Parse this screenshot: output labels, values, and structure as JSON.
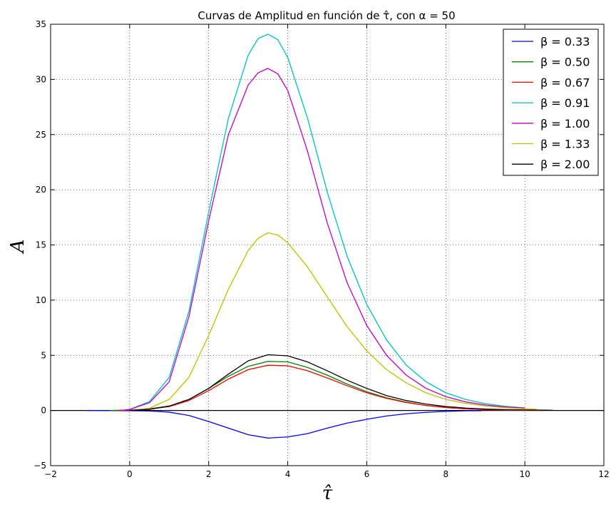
{
  "chart_data": {
    "type": "line",
    "title": "Curvas de Amplitud en función de τ̂, con α = 50",
    "xlabel": "τ̂",
    "ylabel": "A",
    "xlim": [
      -2,
      12
    ],
    "ylim": [
      -5,
      35
    ],
    "xticks": [
      -2,
      0,
      2,
      4,
      6,
      8,
      10,
      12
    ],
    "yticks": [
      -5,
      0,
      5,
      10,
      15,
      20,
      25,
      30,
      35
    ],
    "xtick_labels": [
      "−2",
      "0",
      "2",
      "4",
      "6",
      "8",
      "10",
      "12"
    ],
    "ytick_labels": [
      "−5",
      "0",
      "5",
      "10",
      "15",
      "20",
      "25",
      "30",
      "35"
    ],
    "grid": true,
    "legend_position": "top-right",
    "zero_line": true,
    "series": [
      {
        "name": "β = 0.33",
        "color": "#0000ff",
        "x": [
          -1.1,
          0.0,
          0.5,
          1.0,
          1.5,
          2.0,
          2.5,
          3.0,
          3.5,
          4.0,
          4.5,
          5.0,
          5.5,
          6.0,
          6.5,
          7.0,
          7.5,
          8.0,
          8.5,
          8.9
        ],
        "y": [
          0,
          -0.02,
          -0.05,
          -0.15,
          -0.45,
          -1.0,
          -1.6,
          -2.2,
          -2.5,
          -2.4,
          -2.1,
          -1.6,
          -1.15,
          -0.8,
          -0.5,
          -0.3,
          -0.17,
          -0.08,
          -0.03,
          -0.02
        ]
      },
      {
        "name": "β = 0.50",
        "color": "#008000",
        "x": [
          -0.5,
          0.0,
          0.5,
          1.0,
          1.5,
          2.0,
          2.5,
          3.0,
          3.5,
          4.0,
          4.5,
          5.0,
          5.5,
          6.0,
          6.5,
          7.0,
          7.5,
          8.0,
          8.5,
          9.0,
          9.5,
          10.0,
          10.2
        ],
        "y": [
          0,
          0.05,
          0.15,
          0.4,
          1.0,
          2.0,
          3.1,
          4.0,
          4.45,
          4.4,
          3.9,
          3.2,
          2.4,
          1.7,
          1.15,
          0.75,
          0.45,
          0.27,
          0.15,
          0.08,
          0.04,
          0.02,
          0.01
        ]
      },
      {
        "name": "β = 0.67",
        "color": "#ff0000",
        "x": [
          -0.3,
          0.0,
          0.5,
          1.0,
          1.5,
          2.0,
          2.5,
          3.0,
          3.5,
          4.0,
          4.5,
          5.0,
          5.5,
          6.0,
          6.5,
          7.0,
          7.5,
          8.0,
          8.5,
          9.0,
          9.5,
          10.0,
          10.4
        ],
        "y": [
          0,
          0.05,
          0.15,
          0.35,
          0.9,
          1.8,
          2.85,
          3.7,
          4.1,
          4.05,
          3.6,
          2.95,
          2.25,
          1.6,
          1.1,
          0.72,
          0.45,
          0.27,
          0.15,
          0.08,
          0.04,
          0.02,
          0.01
        ]
      },
      {
        "name": "β = 0.91",
        "color": "#00bfbf",
        "x": [
          0.0,
          0.5,
          1.0,
          1.5,
          2.0,
          2.5,
          3.0,
          3.25,
          3.5,
          3.75,
          4.0,
          4.5,
          5.0,
          5.5,
          6.0,
          6.5,
          7.0,
          7.5,
          8.0,
          8.5,
          9.0,
          9.5,
          10.0
        ],
        "y": [
          0.1,
          0.8,
          3.0,
          9.0,
          18.0,
          26.5,
          32.2,
          33.7,
          34.1,
          33.6,
          32.0,
          26.5,
          19.8,
          14.0,
          9.6,
          6.4,
          4.1,
          2.6,
          1.6,
          1.0,
          0.62,
          0.38,
          0.23
        ]
      },
      {
        "name": "β = 1.00",
        "color": "#bf00bf",
        "x": [
          -0.2,
          0.0,
          0.5,
          1.0,
          1.5,
          2.0,
          2.5,
          3.0,
          3.25,
          3.5,
          3.75,
          4.0,
          4.5,
          5.0,
          5.5,
          6.0,
          6.5,
          7.0,
          7.5,
          8.0,
          8.5,
          9.0,
          9.5,
          10.0
        ],
        "y": [
          0,
          0.1,
          0.7,
          2.6,
          8.5,
          17.2,
          25.0,
          29.5,
          30.6,
          31.0,
          30.5,
          29.0,
          23.5,
          17.0,
          11.6,
          7.7,
          5.0,
          3.2,
          2.0,
          1.25,
          0.78,
          0.5,
          0.32,
          0.22
        ]
      },
      {
        "name": "β = 1.33",
        "color": "#bfbf00",
        "x": [
          0.0,
          0.5,
          1.0,
          1.5,
          2.0,
          2.5,
          3.0,
          3.25,
          3.5,
          3.75,
          4.0,
          4.5,
          5.0,
          5.5,
          6.0,
          6.5,
          7.0,
          7.5,
          8.0,
          8.5,
          9.0,
          9.5,
          10.0,
          10.3
        ],
        "y": [
          0.02,
          0.2,
          1.0,
          3.0,
          6.8,
          11.0,
          14.5,
          15.6,
          16.1,
          15.9,
          15.2,
          13.0,
          10.3,
          7.6,
          5.4,
          3.7,
          2.5,
          1.6,
          1.0,
          0.65,
          0.4,
          0.25,
          0.15,
          0.1
        ]
      },
      {
        "name": "β = 2.00",
        "color": "#000000",
        "x": [
          0.0,
          0.5,
          1.0,
          1.5,
          2.0,
          2.5,
          3.0,
          3.5,
          4.0,
          4.5,
          5.0,
          5.5,
          6.0,
          6.5,
          7.0,
          7.5,
          8.0,
          8.5,
          9.0,
          9.5,
          10.0,
          10.7
        ],
        "y": [
          0.01,
          0.1,
          0.4,
          1.0,
          2.0,
          3.3,
          4.5,
          5.05,
          4.95,
          4.4,
          3.6,
          2.75,
          2.0,
          1.35,
          0.9,
          0.58,
          0.36,
          0.22,
          0.13,
          0.08,
          0.05,
          0.02
        ]
      }
    ]
  }
}
